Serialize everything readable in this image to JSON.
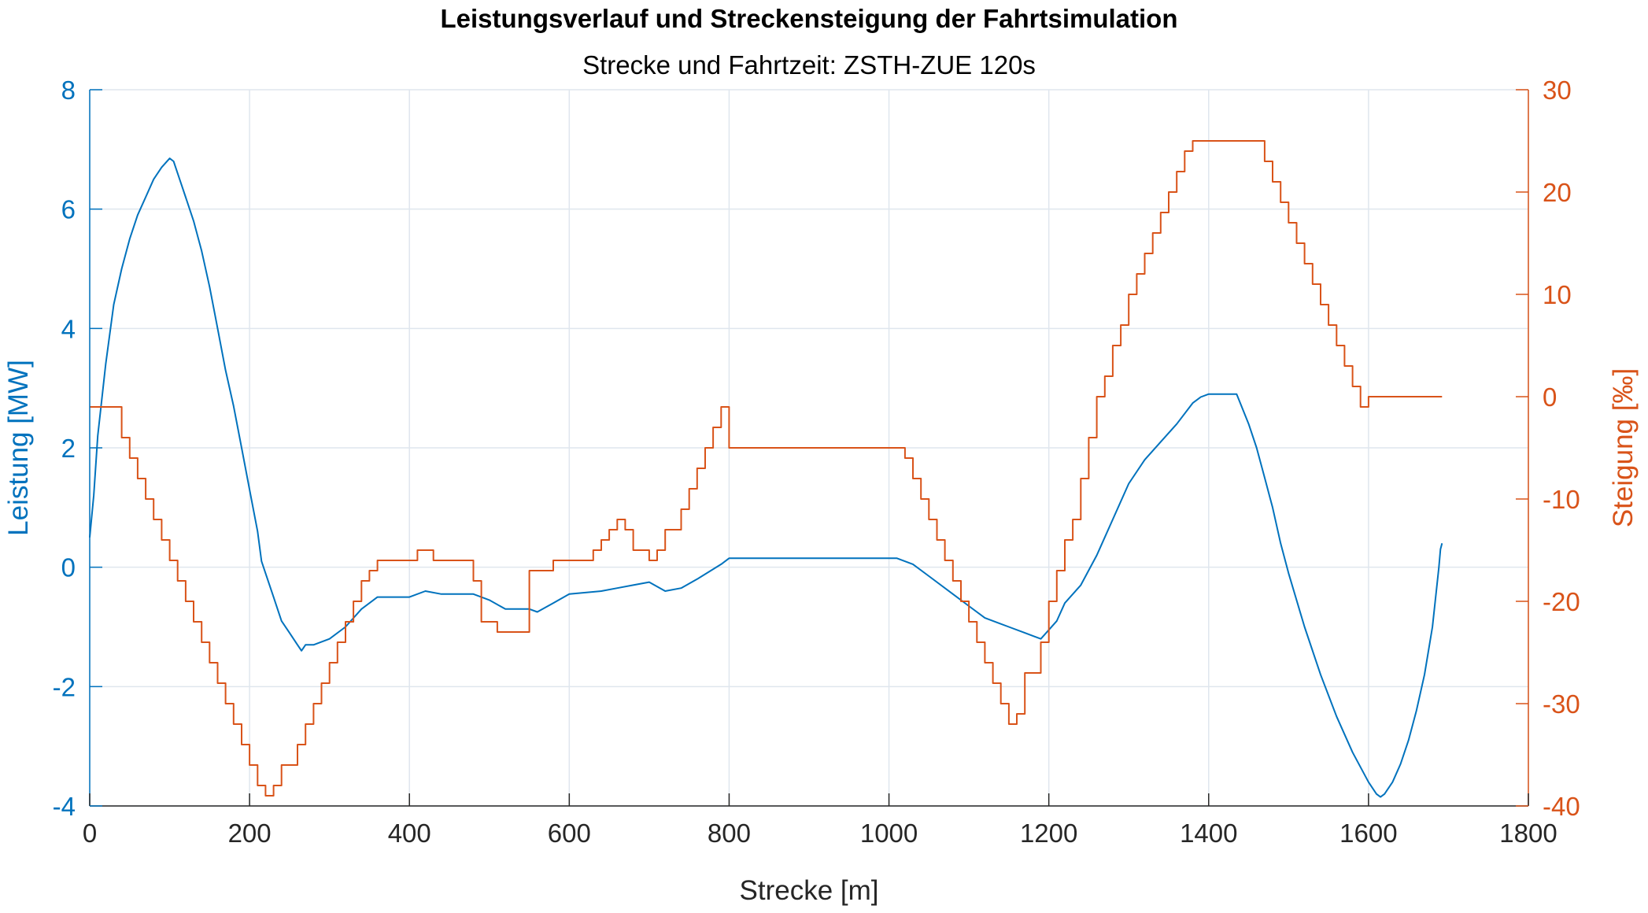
{
  "chart_data": {
    "type": "line",
    "title": "Leistungsverlauf und Streckensteigung der Fahrtsimulation",
    "subtitle": "Strecke und Fahrtzeit: ZSTH-ZUE 120s",
    "xlabel": "Strecke [m]",
    "ylabel_left": "Leistung [MW]",
    "ylabel_right": "Steigung [‰]",
    "xlim": [
      0,
      1800
    ],
    "ylim_left": [
      -4,
      8
    ],
    "ylim_right": [
      -40,
      30
    ],
    "x_ticks": [
      "0",
      "200",
      "400",
      "600",
      "800",
      "1000",
      "1200",
      "1400",
      "1600",
      "1800"
    ],
    "y_left_ticks": [
      "-4",
      "-2",
      "0",
      "2",
      "4",
      "6",
      "8"
    ],
    "y_right_ticks": [
      "-40",
      "-30",
      "-20",
      "-10",
      "0",
      "10",
      "20",
      "30"
    ],
    "grid": true,
    "colors": {
      "left": "#0072BD",
      "right": "#D95319",
      "grid": "#dfe6ee",
      "text": "#000000"
    },
    "series": [
      {
        "axis": "left",
        "step": false,
        "x": [
          0,
          5,
          10,
          20,
          30,
          40,
          50,
          60,
          70,
          80,
          90,
          100,
          105,
          110,
          115,
          120,
          130,
          140,
          150,
          160,
          170,
          180,
          190,
          200,
          210,
          215,
          220,
          230,
          240,
          250,
          260,
          265,
          270,
          280,
          300,
          320,
          340,
          360,
          400,
          420,
          440,
          480,
          500,
          520,
          550,
          560,
          580,
          600,
          640,
          660,
          680,
          700,
          720,
          740,
          760,
          790,
          800,
          850,
          900,
          950,
          1000,
          1010,
          1030,
          1050,
          1080,
          1100,
          1120,
          1150,
          1170,
          1180,
          1190,
          1200,
          1210,
          1220,
          1240,
          1260,
          1280,
          1300,
          1320,
          1340,
          1360,
          1380,
          1390,
          1400,
          1410,
          1420,
          1430,
          1435,
          1450,
          1460,
          1470,
          1480,
          1490,
          1500,
          1520,
          1540,
          1560,
          1580,
          1600,
          1610,
          1615,
          1620,
          1630,
          1640,
          1650,
          1660,
          1670,
          1680,
          1688,
          1690,
          1692
        ],
        "y": [
          0.5,
          1.2,
          2.2,
          3.4,
          4.4,
          5.0,
          5.5,
          5.9,
          6.2,
          6.5,
          6.7,
          6.85,
          6.8,
          6.6,
          6.4,
          6.2,
          5.8,
          5.3,
          4.7,
          4.0,
          3.3,
          2.7,
          2.0,
          1.3,
          0.6,
          0.1,
          -0.1,
          -0.5,
          -0.9,
          -1.1,
          -1.3,
          -1.4,
          -1.3,
          -1.3,
          -1.2,
          -1.0,
          -0.7,
          -0.5,
          -0.5,
          -0.4,
          -0.45,
          -0.45,
          -0.55,
          -0.7,
          -0.7,
          -0.75,
          -0.6,
          -0.45,
          -0.4,
          -0.35,
          -0.3,
          -0.25,
          -0.4,
          -0.35,
          -0.2,
          0.05,
          0.15,
          0.15,
          0.15,
          0.15,
          0.15,
          0.15,
          0.05,
          -0.15,
          -0.45,
          -0.65,
          -0.85,
          -1.0,
          -1.1,
          -1.15,
          -1.2,
          -1.05,
          -0.9,
          -0.6,
          -0.3,
          0.2,
          0.8,
          1.4,
          1.8,
          2.1,
          2.4,
          2.75,
          2.85,
          2.9,
          2.9,
          2.9,
          2.9,
          2.9,
          2.4,
          2.0,
          1.5,
          1.0,
          0.4,
          -0.1,
          -1.0,
          -1.8,
          -2.5,
          -3.1,
          -3.6,
          -3.8,
          -3.85,
          -3.8,
          -3.6,
          -3.3,
          -2.9,
          -2.4,
          -1.8,
          -1.0,
          0.0,
          0.3,
          0.4
        ]
      },
      {
        "axis": "right",
        "step": true,
        "x": [
          0,
          40,
          50,
          60,
          70,
          80,
          90,
          100,
          110,
          120,
          130,
          140,
          150,
          160,
          170,
          180,
          190,
          200,
          210,
          220,
          230,
          240,
          260,
          270,
          280,
          290,
          300,
          310,
          320,
          330,
          340,
          350,
          360,
          410,
          430,
          480,
          490,
          510,
          550,
          580,
          600,
          630,
          640,
          650,
          660,
          670,
          680,
          700,
          710,
          720,
          740,
          750,
          760,
          770,
          780,
          790,
          800,
          1020,
          1030,
          1040,
          1050,
          1060,
          1070,
          1080,
          1090,
          1100,
          1110,
          1120,
          1130,
          1140,
          1150,
          1160,
          1170,
          1190,
          1200,
          1210,
          1220,
          1230,
          1240,
          1250,
          1260,
          1270,
          1280,
          1290,
          1300,
          1310,
          1320,
          1330,
          1340,
          1350,
          1360,
          1370,
          1380,
          1390,
          1400,
          1470,
          1480,
          1490,
          1500,
          1510,
          1520,
          1530,
          1540,
          1550,
          1560,
          1570,
          1580,
          1590,
          1600,
          1692
        ],
        "y": [
          -1,
          -4,
          -6,
          -8,
          -10,
          -12,
          -14,
          -16,
          -18,
          -20,
          -22,
          -24,
          -26,
          -28,
          -30,
          -32,
          -34,
          -36,
          -38,
          -39,
          -38,
          -36,
          -34,
          -32,
          -30,
          -28,
          -26,
          -24,
          -22,
          -20,
          -18,
          -17,
          -16,
          -15,
          -16,
          -18,
          -22,
          -23,
          -17,
          -16,
          -16,
          -15,
          -14,
          -13,
          -12,
          -13,
          -15,
          -16,
          -15,
          -13,
          -11,
          -9,
          -7,
          -5,
          -3,
          -1,
          -5,
          -6,
          -8,
          -10,
          -12,
          -14,
          -16,
          -18,
          -20,
          -22,
          -24,
          -26,
          -28,
          -30,
          -32,
          -31,
          -27,
          -24,
          -20,
          -17,
          -14,
          -12,
          -8,
          -4,
          0,
          2,
          5,
          7,
          10,
          12,
          14,
          16,
          18,
          20,
          22,
          24,
          25,
          25,
          25,
          23,
          21,
          19,
          17,
          15,
          13,
          11,
          9,
          7,
          5,
          3,
          1,
          -1,
          0,
          0
        ]
      }
    ]
  }
}
